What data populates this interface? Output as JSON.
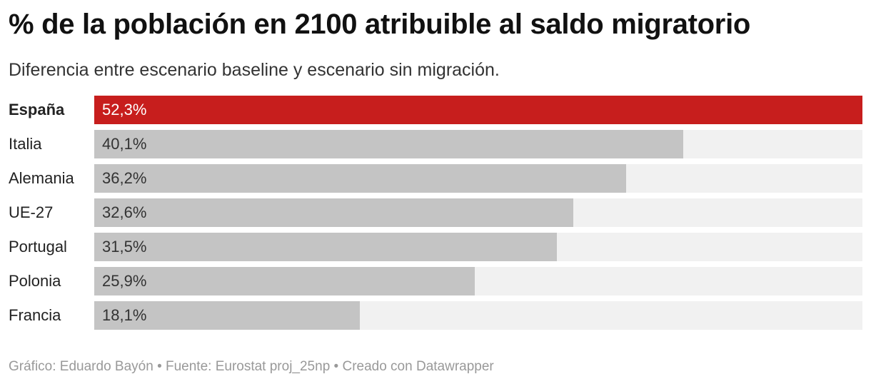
{
  "chart_data": {
    "type": "bar",
    "orientation": "horizontal",
    "title": "% de la población en 2100 atribuible al saldo migratorio",
    "subtitle": "Diferencia entre escenario baseline y escenario sin migración.",
    "categories": [
      "España",
      "Italia",
      "Alemania",
      "UE-27",
      "Portugal",
      "Polonia",
      "Francia"
    ],
    "values": [
      52.3,
      40.1,
      36.2,
      32.6,
      31.5,
      25.9,
      18.1
    ],
    "value_labels": [
      "52,3%",
      "40,1%",
      "36,2%",
      "32,6%",
      "31,5%",
      "25,9%",
      "18,1%"
    ],
    "highlight": "España",
    "xlim": [
      0,
      52.3
    ],
    "grid": false,
    "colors": {
      "highlight": "#c71e1d",
      "default": "#c4c4c4",
      "track": "#f1f1f1"
    }
  },
  "footer": "Gráfico: Eduardo Bayón • Fuente: Eurostat proj_25np • Creado con Datawrapper"
}
